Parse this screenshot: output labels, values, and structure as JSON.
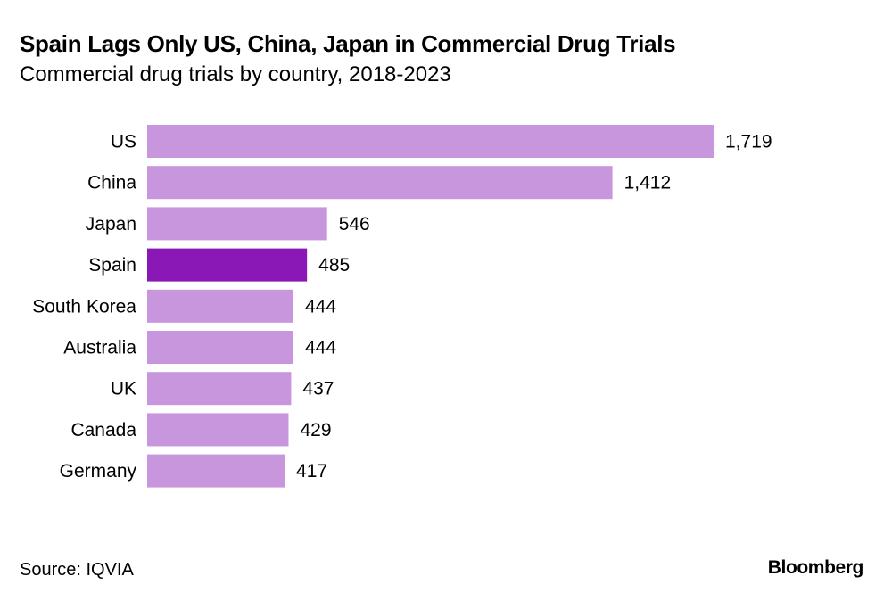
{
  "colors": {
    "bar": "#c796dc",
    "highlight": "#8a18b6",
    "text": "#000000"
  },
  "source": "Source: IQVIA",
  "brand": "Bloomberg",
  "chart_data": {
    "type": "bar",
    "orientation": "horizontal",
    "title": "Spain Lags Only US, China, Japan in Commercial Drug Trials",
    "subtitle": "Commercial drug trials by country, 2018-2023",
    "categories": [
      "US",
      "China",
      "Japan",
      "Spain",
      "South Korea",
      "Australia",
      "UK",
      "Canada",
      "Germany"
    ],
    "values": [
      1719,
      1412,
      546,
      485,
      444,
      444,
      437,
      429,
      417
    ],
    "value_labels": [
      "1,719",
      "1,412",
      "546",
      "485",
      "444",
      "444",
      "437",
      "429",
      "417"
    ],
    "highlight": "Spain",
    "xlim": [
      0,
      1719
    ],
    "grid": false,
    "legend": "none"
  }
}
